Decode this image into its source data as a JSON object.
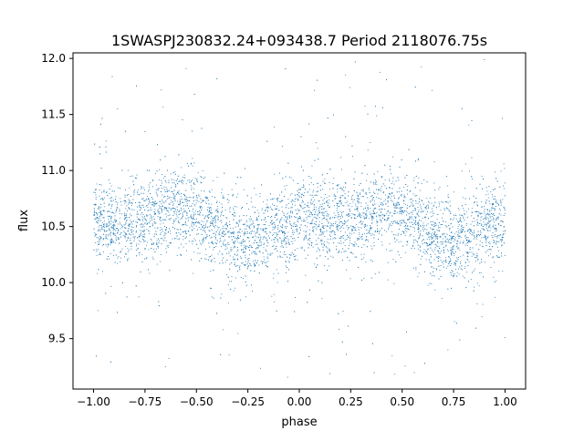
{
  "chart_data": {
    "type": "scatter",
    "title": "1SWASPJ230832.24+093438.7 Period 2118076.75s",
    "xlabel": "phase",
    "ylabel": "flux",
    "xlim": [
      -1.1,
      1.1
    ],
    "ylim": [
      9.05,
      12.05
    ],
    "x_ticks": [
      -1.0,
      -0.75,
      -0.5,
      -0.25,
      0.0,
      0.25,
      0.5,
      0.75,
      1.0
    ],
    "x_tick_labels": [
      "−1.00",
      "−0.75",
      "−0.50",
      "−0.25",
      "0.00",
      "0.25",
      "0.50",
      "0.75",
      "1.00"
    ],
    "y_ticks": [
      9.5,
      10.0,
      10.5,
      11.0,
      11.5,
      12.0
    ],
    "y_tick_labels": [
      "9.5",
      "10.0",
      "10.5",
      "11.0",
      "11.5",
      "12.0"
    ],
    "grid": false,
    "legend": "none",
    "marker_color": "#1f77b4",
    "series": [
      {
        "x_range": [
          -1.0,
          1.0
        ],
        "mean_profile": {
          "phase": [
            -1.0,
            -0.9,
            -0.8,
            -0.7,
            -0.6,
            -0.5,
            -0.4,
            -0.3,
            -0.25,
            -0.2,
            -0.1,
            0.0,
            0.1,
            0.2,
            0.3,
            0.4,
            0.5,
            0.6,
            0.7,
            0.75,
            0.8,
            0.9,
            1.0
          ],
          "flux": [
            10.55,
            10.52,
            10.55,
            10.6,
            10.68,
            10.62,
            10.48,
            10.38,
            10.35,
            10.4,
            10.5,
            10.55,
            10.55,
            10.55,
            10.6,
            10.68,
            10.62,
            10.48,
            10.38,
            10.35,
            10.4,
            10.5,
            10.55
          ]
        },
        "flux_spread_core": [
          10.1,
          11.0
        ],
        "outlier_range": [
          9.15,
          12.0
        ]
      }
    ]
  }
}
